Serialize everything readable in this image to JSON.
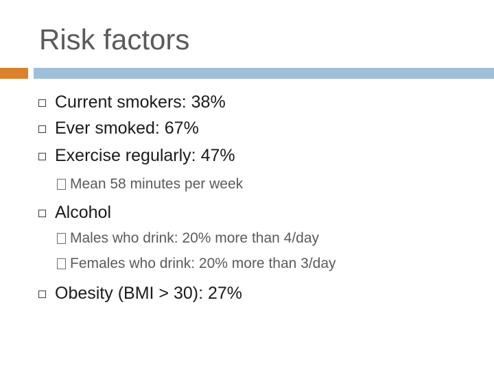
{
  "slide": {
    "title": "Risk factors",
    "colors": {
      "accent": "#d9822b",
      "rule": "#9fbfd9"
    },
    "bullets": [
      {
        "text": "Current smokers:  38%"
      },
      {
        "text": "Ever smoked:  67%"
      },
      {
        "text": "Exercise regularly:  47%"
      },
      {
        "sub": "Mean 58 minutes per week"
      },
      {
        "text": "Alcohol"
      },
      {
        "sub": "Males who drink:  20% more than 4/day"
      },
      {
        "sub": "Females who drink:  20% more than 3/day"
      },
      {
        "text": "Obesity (BMI > 30):  27%"
      }
    ]
  }
}
